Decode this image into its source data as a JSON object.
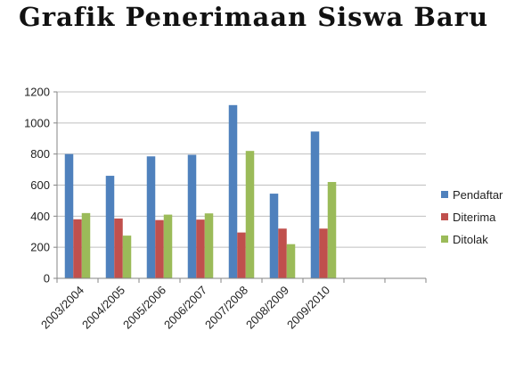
{
  "chart_data": {
    "type": "bar",
    "title": "Grafik Penerimaan Siswa Baru",
    "xlabel": "",
    "ylabel": "",
    "ylim": [
      0,
      1200
    ],
    "yticks": [
      "0",
      "200",
      "400",
      "600",
      "800",
      "1000",
      "1200"
    ],
    "categories": [
      "2003/2004",
      "2004/2005",
      "2005/2006",
      "2006/2007",
      "2007/2008",
      "2008/2009",
      "2009/2010",
      "",
      ""
    ],
    "series": [
      {
        "name": "Pendaftar",
        "color": "#4F81BD",
        "values": [
          800,
          660,
          785,
          795,
          1115,
          545,
          945,
          null,
          null
        ]
      },
      {
        "name": "Diterima",
        "color": "#C0504D",
        "values": [
          380,
          385,
          375,
          378,
          295,
          320,
          320,
          null,
          null
        ]
      },
      {
        "name": "Ditolak",
        "color": "#9BBB59",
        "values": [
          420,
          275,
          410,
          418,
          820,
          220,
          620,
          null,
          null
        ]
      }
    ],
    "grid": true,
    "legend": "right"
  }
}
